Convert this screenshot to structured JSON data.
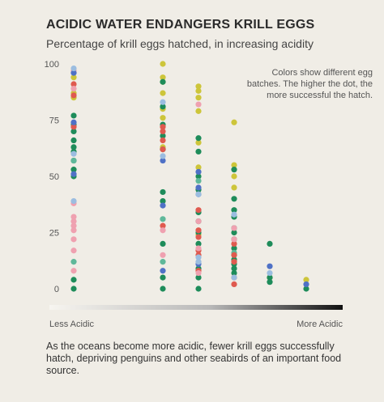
{
  "header": {
    "title": "ACIDIC WATER ENDANGERS KRILL EGGS",
    "subtitle": "Percentage of krill eggs hatched, in increasing acidity"
  },
  "annotation": "Colors show different egg batches. The higher the dot, the more successful the hatch.",
  "acidity_axis": {
    "left_label": "Less Acidic",
    "right_label": "More Acidic"
  },
  "footer": "As the oceans become more acidic, fewer krill eggs successfully hatch, depriving penguins and other seabirds of an important food source.",
  "colors": {
    "background": "#f0ede6",
    "yellow": "#cdc53a",
    "green": "#1e8c5a",
    "teal": "#5fb89a",
    "red": "#df5a4f",
    "pink": "#efa1b0",
    "blue": "#4f71c6",
    "lightblue": "#9bbde0"
  },
  "chart_data": {
    "type": "scatter",
    "title": "ACIDIC WATER ENDANGERS KRILL EGGS",
    "subtitle": "Percentage of krill eggs hatched, in increasing acidity",
    "ylim": [
      0,
      100
    ],
    "yticks": [
      "0",
      "25",
      "50",
      "75",
      "100"
    ],
    "x_categories": [
      1,
      2,
      3,
      4,
      5,
      6
    ],
    "grid": false,
    "series": [
      {
        "color": "yellow",
        "x": [
          1,
          1,
          1,
          2,
          2,
          2,
          2,
          2,
          2,
          2,
          3,
          3,
          3,
          3,
          3,
          3,
          3,
          4,
          4,
          4,
          4,
          5,
          6
        ],
        "y": [
          94,
          87,
          85,
          100,
          94,
          92,
          87,
          80,
          76,
          63,
          90,
          88,
          85,
          79,
          65,
          54,
          24,
          74,
          55,
          50,
          45,
          5,
          4
        ]
      },
      {
        "color": "green",
        "x": [
          1,
          1,
          1,
          1,
          1,
          1,
          1,
          1,
          1,
          1,
          1,
          2,
          2,
          2,
          2,
          2,
          2,
          2,
          2,
          2,
          2,
          3,
          3,
          3,
          3,
          3,
          3,
          3,
          3,
          3,
          3,
          3,
          4,
          4,
          4,
          4,
          4,
          4,
          4,
          4,
          4,
          4,
          4,
          4,
          4,
          5,
          5,
          5,
          6
        ],
        "y": [
          77,
          73,
          70,
          66,
          63,
          61,
          57,
          53,
          50,
          4,
          0,
          92,
          81,
          73,
          68,
          62,
          43,
          39,
          20,
          5,
          0,
          67,
          61,
          50,
          44,
          34,
          30,
          25,
          20,
          9,
          5,
          0,
          53,
          40,
          35,
          32,
          27,
          25,
          22,
          18,
          15,
          13,
          11,
          9,
          7,
          20,
          5,
          3,
          0
        ]
      },
      {
        "color": "teal",
        "x": [
          1,
          1,
          2,
          2,
          3,
          4
        ],
        "y": [
          57,
          12,
          31,
          12,
          48,
          16
        ]
      },
      {
        "color": "red",
        "x": [
          1,
          1,
          1,
          2,
          2,
          2,
          2,
          2,
          3,
          3,
          3,
          3,
          3,
          3,
          4,
          4,
          4,
          4,
          4
        ],
        "y": [
          91,
          86,
          72,
          72,
          70,
          66,
          62,
          28,
          35,
          26,
          23,
          17,
          15,
          8,
          20,
          15,
          12,
          5,
          2
        ]
      },
      {
        "color": "pink",
        "x": [
          1,
          1,
          1,
          1,
          1,
          1,
          1,
          1,
          1,
          1,
          2,
          2,
          3,
          3,
          3,
          3,
          4,
          4
        ],
        "y": [
          97,
          89,
          38,
          32,
          30,
          28,
          26,
          22,
          17,
          8,
          15,
          26,
          82,
          30,
          18,
          7,
          27,
          22
        ]
      },
      {
        "color": "blue",
        "x": [
          1,
          1,
          1,
          2,
          2,
          2,
          3,
          3,
          3,
          3,
          5,
          6
        ],
        "y": [
          96,
          74,
          51,
          57,
          37,
          8,
          52,
          45,
          42,
          11,
          10,
          2
        ]
      },
      {
        "color": "lightblue",
        "x": [
          1,
          1,
          1,
          2,
          2,
          3,
          3,
          3,
          4,
          4,
          5
        ],
        "y": [
          98,
          60,
          39,
          83,
          59,
          42,
          14,
          12,
          33,
          5,
          7
        ]
      }
    ]
  }
}
